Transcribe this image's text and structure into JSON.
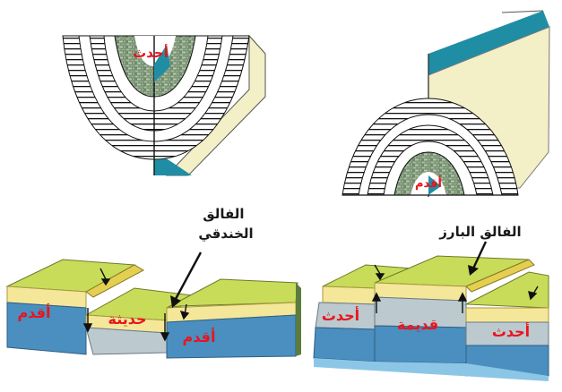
{
  "labels": {
    "syncline_youngest": "أحدث",
    "anticline_oldest": "أقدم",
    "graben_fault": "الفالق\nالخندقي",
    "horst_fault": "الفالق البارز",
    "graben_left_older": "أقدم",
    "graben_center_newer": "حديثة",
    "graben_right_older": "أقدم",
    "horst_left_newer": "أحدث",
    "horst_center_old": "قديمة",
    "horst_right_newer": "أحدث"
  },
  "colors": {
    "label_red": "#e8141c",
    "label_black": "#1a1a1a",
    "layer_green": "#c8dc5a",
    "layer_yellow": "#f4e79a",
    "layer_blue": "#4a8fbf",
    "block_teal": "#1f8ea5",
    "block_cream": "#f3efc6",
    "stone_green": "#6f8a6a"
  }
}
